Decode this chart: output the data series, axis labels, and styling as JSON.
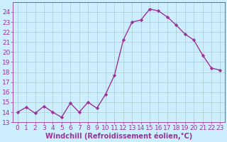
{
  "x": [
    0,
    1,
    2,
    3,
    4,
    5,
    6,
    7,
    8,
    9,
    10,
    11,
    12,
    13,
    14,
    15,
    16,
    17,
    18,
    19,
    20,
    21,
    22,
    23
  ],
  "y": [
    14,
    14.5,
    13.9,
    14.6,
    14.0,
    13.5,
    14.9,
    14.0,
    15.0,
    14.4,
    15.8,
    17.7,
    21.2,
    23.0,
    23.2,
    24.3,
    24.1,
    23.5,
    22.7,
    21.8,
    21.2,
    19.7,
    18.4,
    18.2
  ],
  "line_color": "#993399",
  "marker": "D",
  "marker_size": 2.2,
  "xlabel": "Windchill (Refroidissement éolien,°C)",
  "xlabel_fontsize": 7,
  "ylim": [
    13,
    25
  ],
  "yticks": [
    13,
    14,
    15,
    16,
    17,
    18,
    19,
    20,
    21,
    22,
    23,
    24
  ],
  "xlim": [
    -0.5,
    23.5
  ],
  "xticks": [
    0,
    1,
    2,
    3,
    4,
    5,
    6,
    7,
    8,
    9,
    10,
    11,
    12,
    13,
    14,
    15,
    16,
    17,
    18,
    19,
    20,
    21,
    22,
    23
  ],
  "bg_color": "#cceeff",
  "grid_color": "#aacccc",
  "tick_fontsize": 6.5,
  "linewidth": 1.0
}
